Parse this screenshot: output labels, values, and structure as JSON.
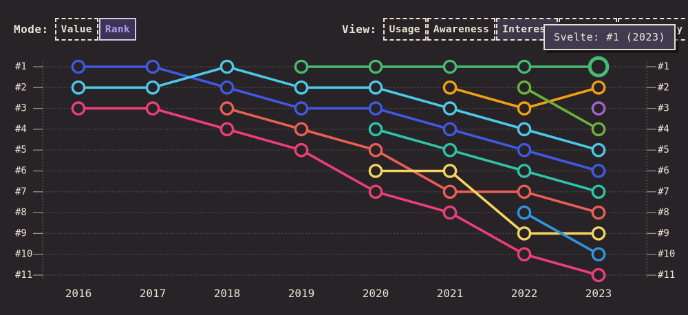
{
  "page": {
    "background": "#282326",
    "text_color": "#e9e3d6",
    "accent_purple": "#b19df0"
  },
  "controls": {
    "mode": {
      "label": "Mode:",
      "options": [
        {
          "label": "Value",
          "selected": false
        },
        {
          "label": "Rank",
          "selected": true
        }
      ]
    },
    "view": {
      "label": "View:",
      "options": [
        {
          "label": "Usage",
          "selected": false
        },
        {
          "label": "Awareness",
          "selected": false
        },
        {
          "label": "Interest",
          "selected": true
        },
        {
          "label": "",
          "selected": false
        },
        {
          "label": "ty",
          "selected": false
        }
      ]
    }
  },
  "tooltip": {
    "text": "Svelte: #1 (2023)"
  },
  "chart_data": {
    "type": "line",
    "subtype": "bump-rank-chart",
    "x": [
      2016,
      2017,
      2018,
      2019,
      2020,
      2021,
      2022,
      2023
    ],
    "rank_axis": {
      "labels": [
        "#1",
        "#2",
        "#3",
        "#4",
        "#5",
        "#6",
        "#7",
        "#8",
        "#9",
        "#10",
        "#11"
      ],
      "min": 1,
      "max": 11,
      "dual_axis": true,
      "inverted": true
    },
    "grid": "dotted horizontal line per rank, dotted vertical axis lines with solid outer ticks",
    "legend_position": "none",
    "series": [
      {
        "id": "royal-blue",
        "color": "#4059e0",
        "ranks": [
          1,
          1,
          2,
          3,
          3,
          4,
          5,
          6
        ]
      },
      {
        "id": "cyan",
        "color": "#4cc9e6",
        "ranks": [
          2,
          2,
          1,
          2,
          2,
          3,
          4,
          5
        ]
      },
      {
        "id": "magenta",
        "color": "#ec3f78",
        "ranks": [
          3,
          3,
          4,
          5,
          7,
          8,
          10,
          11
        ]
      },
      {
        "id": "salmon",
        "color": "#ea5f55",
        "ranks": [
          null,
          null,
          3,
          4,
          5,
          7,
          7,
          8
        ]
      },
      {
        "id": "green",
        "label": "Svelte",
        "color": "#46bb72",
        "ranks": [
          null,
          null,
          null,
          1,
          1,
          1,
          1,
          1
        ],
        "highlight_last": true
      },
      {
        "id": "teal",
        "color": "#2ec4a9",
        "ranks": [
          null,
          null,
          null,
          null,
          4,
          5,
          6,
          7
        ]
      },
      {
        "id": "yellow",
        "color": "#f4d55f",
        "ranks": [
          null,
          null,
          null,
          null,
          6,
          6,
          9,
          9
        ]
      },
      {
        "id": "orange",
        "color": "#f0a013",
        "ranks": [
          null,
          null,
          null,
          null,
          null,
          2,
          3,
          2
        ]
      },
      {
        "id": "lime",
        "color": "#6db23c",
        "ranks": [
          null,
          null,
          null,
          null,
          null,
          null,
          2,
          4
        ]
      },
      {
        "id": "sky-blue",
        "color": "#3095e0",
        "ranks": [
          null,
          null,
          null,
          null,
          null,
          null,
          8,
          10
        ]
      },
      {
        "id": "purple",
        "color": "#a263d2",
        "ranks": [
          null,
          null,
          null,
          null,
          null,
          null,
          null,
          3
        ]
      }
    ],
    "highlight": {
      "series": "green",
      "year": 2023,
      "rank": 1
    }
  }
}
